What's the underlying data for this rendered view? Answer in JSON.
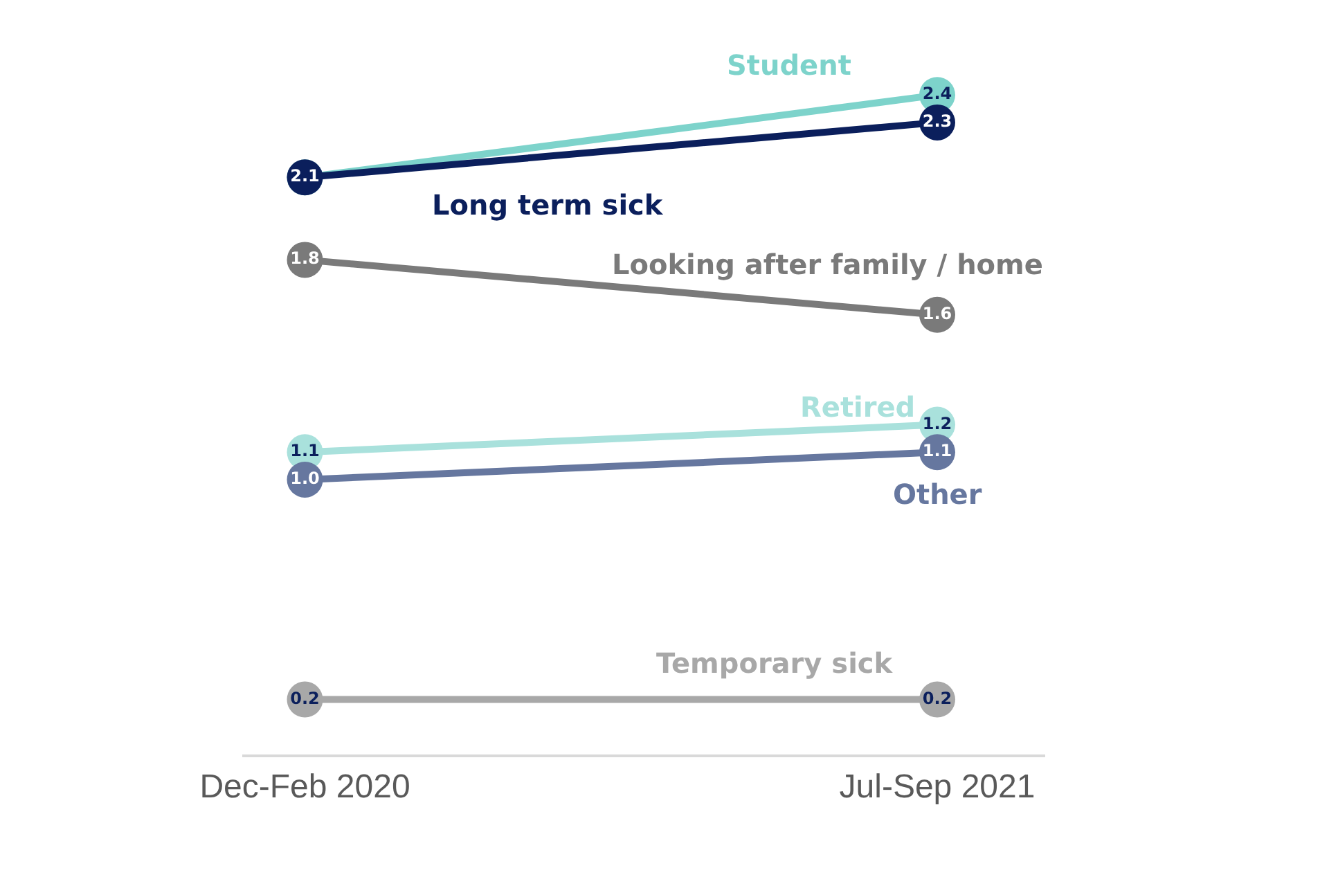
{
  "chart_data": {
    "type": "line",
    "categories": [
      "Dec-Feb 2020",
      "Jul-Sep 2021"
    ],
    "marker": "circle",
    "series": [
      {
        "name": "Student",
        "color": "#7dd3cb",
        "values": [
          2.1,
          2.4
        ],
        "value_labels": [
          null,
          "2.4"
        ]
      },
      {
        "name": "Long term sick",
        "color": "#0b1f5c",
        "values": [
          2.1,
          2.3
        ],
        "value_labels": [
          "2.1",
          "2.3"
        ]
      },
      {
        "name": "Looking after family / home",
        "color": "#7a7a7a",
        "values": [
          1.8,
          1.6
        ],
        "value_labels": [
          "1.8",
          "1.6"
        ]
      },
      {
        "name": "Retired",
        "color": "#a9e1dc",
        "values": [
          1.1,
          1.2
        ],
        "value_labels": [
          "1.1",
          "1.2"
        ]
      },
      {
        "name": "Other",
        "color": "#66779f",
        "values": [
          1.0,
          1.1
        ],
        "value_labels": [
          "1.0",
          "1.1"
        ]
      },
      {
        "name": "Temporary sick",
        "color": "#a8a8a8",
        "values": [
          0.2,
          0.2
        ],
        "value_labels": [
          "0.2",
          "0.2"
        ]
      }
    ]
  }
}
